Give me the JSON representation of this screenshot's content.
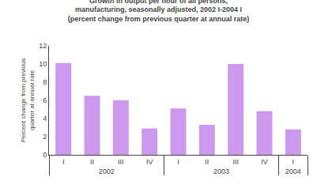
{
  "chart_data": {
    "type": "bar",
    "title": "Growth in output per hour of all persons,\nmanufacturing, seasonally adjusted, 2002 I-2004 I\n(percent change from previous quarter at annual rate)",
    "ylabel": "Percent change from previous\nquarter at annual rate",
    "categories": [
      "I",
      "II",
      "III",
      "IV",
      "I",
      "II",
      "III",
      "IV",
      "I"
    ],
    "groups": [
      "2002",
      "2002",
      "2002",
      "2002",
      "2003",
      "2003",
      "2003",
      "2003",
      "2004"
    ],
    "values": [
      10.1,
      6.5,
      6.0,
      2.9,
      5.1,
      3.3,
      10.0,
      4.8,
      2.8
    ],
    "color": "#cc99ee",
    "ylim": [
      0.0,
      12.0
    ],
    "yticks": [
      0.0,
      2.0,
      4.0,
      6.0,
      8.0,
      10.0,
      12.0
    ],
    "grid": false
  }
}
